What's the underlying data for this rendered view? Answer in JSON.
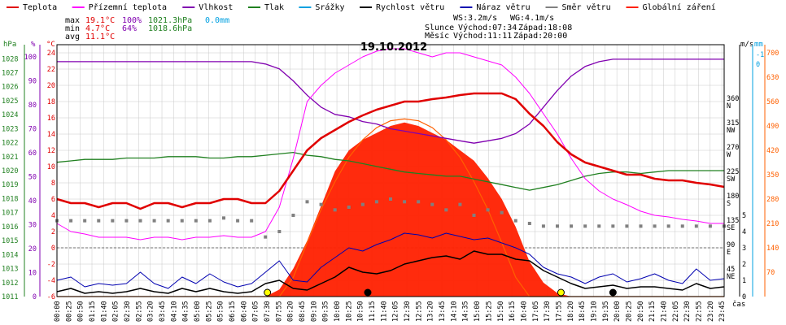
{
  "chart_data": {
    "type": "line",
    "title": "19.10.2012",
    "colors": {
      "temp": "#e00000",
      "feels": "#ff00ff",
      "humidity": "#8000b0",
      "pressure": "#208020",
      "rain": "#00a0e0",
      "wind": "#000000",
      "gust": "#0000b0",
      "dir": "#808080",
      "solar": "#ff2000",
      "solar_curve": "#ff6000",
      "grid": "#c8c8c8",
      "ref": "#707070"
    },
    "legend": [
      {
        "key": "temp",
        "label": "Teplota"
      },
      {
        "key": "feels",
        "label": "Přízemní teplota"
      },
      {
        "key": "humidity",
        "label": "Vlhkost"
      },
      {
        "key": "pressure",
        "label": "Tlak"
      },
      {
        "key": "rain",
        "label": "Srážky"
      },
      {
        "key": "wind",
        "label": "Rychlost větru"
      },
      {
        "key": "gust",
        "label": "Náraz větru"
      },
      {
        "key": "dir",
        "label": "Směr větru"
      },
      {
        "key": "solar",
        "label": "Globální záření"
      }
    ],
    "stats": {
      "max_label": "max",
      "max_temp": "19.1°C",
      "max_hum": "100%",
      "max_press": "1021.3hPa",
      "rain": "0.0mm",
      "min_label": "min",
      "min_temp": "4.7°C",
      "min_hum": "64%",
      "min_press": "1018.6hPa",
      "avg_label": "avg",
      "avg_temp": "11.1°C"
    },
    "info": {
      "ws": "WS:3.2m/s",
      "wg": "WG:4.1m/s",
      "sun_label": "Slunce",
      "sun_rise": "Východ:07:34",
      "sun_set": "Západ:18:08",
      "moon_label": "Měsíc",
      "moon_rise": "Východ:11:11",
      "moon_set": "Západ:20:00"
    },
    "axes": {
      "hpa_unit": "hPa",
      "pct_unit": "%",
      "c_unit": "°C",
      "ms_unit": "m/s",
      "mm_unit": "mm",
      "hpa_ticks": [
        "1011",
        "1012",
        "1013",
        "1014",
        "1015",
        "1016",
        "1017",
        "1018",
        "1019",
        "1020",
        "1021",
        "1022",
        "1023",
        "1024",
        "1025",
        "1026",
        "1027",
        "1028"
      ],
      "pct_ticks": [
        "0",
        "10",
        "20",
        "30",
        "40",
        "50",
        "60",
        "70",
        "80",
        "90",
        "100"
      ],
      "c_ticks": [
        "-6",
        "-4",
        "-2",
        "0",
        "2",
        "4",
        "6",
        "8",
        "10",
        "12",
        "14",
        "16",
        "18",
        "20",
        "22",
        "24"
      ],
      "dir_ticks": [
        {
          "deg": "360",
          "dir": "N"
        },
        {
          "deg": "315",
          "dir": "NW"
        },
        {
          "deg": "270",
          "dir": "W"
        },
        {
          "deg": "225",
          "dir": "SW"
        },
        {
          "deg": "180",
          "dir": "S"
        },
        {
          "deg": "135",
          "dir": "SE"
        },
        {
          "deg": "90",
          "dir": "E"
        },
        {
          "deg": "45",
          "dir": "NE"
        }
      ],
      "ms_ticks": [
        "0",
        "1",
        "2",
        "3",
        "4",
        "5"
      ],
      "mm_ticks": [
        "-1",
        "0"
      ],
      "solar_ticks": [
        "70",
        "140",
        "210",
        "280",
        "350",
        "420",
        "490",
        "560",
        "630",
        "700"
      ],
      "x_unit": "čas",
      "x_ticks": [
        "00:00",
        "00:25",
        "00:50",
        "01:15",
        "01:40",
        "02:05",
        "02:30",
        "02:55",
        "03:20",
        "03:45",
        "04:10",
        "04:35",
        "05:00",
        "05:25",
        "05:50",
        "06:15",
        "06:40",
        "07:05",
        "07:30",
        "07:55",
        "08:20",
        "08:45",
        "09:10",
        "09:35",
        "10:00",
        "10:25",
        "10:50",
        "11:15",
        "11:40",
        "12:05",
        "12:30",
        "12:55",
        "13:20",
        "13:45",
        "14:10",
        "14:35",
        "15:00",
        "15:25",
        "15:50",
        "16:15",
        "16:40",
        "17:05",
        "17:30",
        "17:55",
        "18:20",
        "18:45",
        "19:10",
        "19:35",
        "20:00",
        "20:25",
        "20:50",
        "21:15",
        "21:40",
        "22:05",
        "22:30",
        "22:55",
        "23:20",
        "23:45"
      ]
    },
    "x_hours": [
      0,
      0.5,
      1,
      1.5,
      2,
      2.5,
      3,
      3.5,
      4,
      4.5,
      5,
      5.5,
      6,
      6.5,
      7,
      7.5,
      8,
      8.5,
      9,
      9.5,
      10,
      10.5,
      11,
      11.5,
      12,
      12.5,
      13,
      13.5,
      14,
      14.5,
      15,
      15.5,
      16,
      16.5,
      17,
      17.5,
      18,
      18.5,
      19,
      19.5,
      20,
      20.5,
      21,
      21.5,
      22,
      22.5,
      23,
      23.5,
      24
    ],
    "series": [
      {
        "key": "temp",
        "unit": "°C",
        "values": [
          6.0,
          5.5,
          5.5,
          5.0,
          5.5,
          5.5,
          4.8,
          5.5,
          5.5,
          5.0,
          5.5,
          5.5,
          6.0,
          6.0,
          5.5,
          5.5,
          7.0,
          9.5,
          12.0,
          13.5,
          14.5,
          15.5,
          16.3,
          17.0,
          17.5,
          18.0,
          18.0,
          18.3,
          18.5,
          18.8,
          19.0,
          19.0,
          19.0,
          18.3,
          16.5,
          15.0,
          13.0,
          11.5,
          10.5,
          10.0,
          9.5,
          9.0,
          9.0,
          8.5,
          8.3,
          8.3,
          8.0,
          7.8,
          7.5
        ]
      },
      {
        "key": "feels",
        "unit": "°C",
        "values": [
          3.0,
          2.0,
          1.7,
          1.3,
          1.3,
          1.3,
          1.0,
          1.3,
          1.3,
          1.0,
          1.3,
          1.3,
          1.5,
          1.3,
          1.3,
          2.0,
          5.0,
          11.0,
          18.0,
          20.0,
          21.5,
          22.5,
          23.5,
          24.2,
          24.5,
          24.5,
          24.0,
          23.5,
          24.0,
          24.0,
          23.5,
          23.0,
          22.5,
          21.0,
          19.0,
          16.5,
          14.0,
          11.0,
          8.5,
          7.0,
          6.0,
          5.3,
          4.5,
          4.0,
          3.8,
          3.5,
          3.3,
          3.0,
          3.0
        ]
      },
      {
        "key": "humidity",
        "unit": "%",
        "values": [
          98,
          98,
          98,
          98,
          98,
          98,
          98,
          98,
          98,
          98,
          98,
          98,
          98,
          98,
          98,
          97,
          95,
          90,
          84,
          79,
          76,
          75,
          73,
          72,
          70,
          69,
          68,
          67,
          66,
          65,
          64,
          65,
          66,
          68,
          72,
          79,
          86,
          92,
          96,
          98,
          99,
          99,
          99,
          99,
          99,
          99,
          99,
          99,
          99
        ]
      },
      {
        "key": "pressure",
        "unit": "hPa",
        "values": [
          1020.6,
          1020.7,
          1020.8,
          1020.8,
          1020.8,
          1020.9,
          1020.9,
          1020.9,
          1021.0,
          1021.0,
          1021.0,
          1020.9,
          1020.9,
          1021.0,
          1021.0,
          1021.1,
          1021.2,
          1021.3,
          1021.1,
          1021.0,
          1020.8,
          1020.7,
          1020.5,
          1020.3,
          1020.1,
          1019.9,
          1019.8,
          1019.7,
          1019.6,
          1019.6,
          1019.4,
          1019.2,
          1019.0,
          1018.8,
          1018.6,
          1018.8,
          1019.0,
          1019.3,
          1019.6,
          1019.8,
          1019.9,
          1019.9,
          1019.8,
          1019.9,
          1020.0,
          1020.0,
          1020.0,
          1020.0,
          1020.0
        ]
      },
      {
        "key": "wind",
        "unit": "m/s",
        "values": [
          0.3,
          0.5,
          0.2,
          0.3,
          0.2,
          0.3,
          0.5,
          0.3,
          0.2,
          0.5,
          0.3,
          0.5,
          0.3,
          0.2,
          0.3,
          0.8,
          1.0,
          0.5,
          0.4,
          0.8,
          1.2,
          1.8,
          1.5,
          1.4,
          1.6,
          2.0,
          2.2,
          2.4,
          2.5,
          2.3,
          2.8,
          2.6,
          2.6,
          2.3,
          2.2,
          1.6,
          1.2,
          0.8,
          0.5,
          0.6,
          0.7,
          0.5,
          0.6,
          0.6,
          0.5,
          0.4,
          0.8,
          0.5,
          0.6
        ]
      },
      {
        "key": "gust",
        "unit": "m/s",
        "values": [
          1.0,
          1.2,
          0.6,
          0.8,
          0.7,
          0.8,
          1.5,
          0.8,
          0.5,
          1.2,
          0.8,
          1.4,
          0.9,
          0.6,
          0.8,
          1.5,
          2.2,
          1.0,
          0.9,
          1.8,
          2.4,
          3.0,
          2.8,
          3.2,
          3.5,
          3.9,
          3.8,
          3.6,
          3.9,
          3.7,
          3.5,
          3.6,
          3.3,
          3.0,
          2.6,
          1.8,
          1.4,
          1.2,
          0.8,
          1.2,
          1.4,
          0.9,
          1.1,
          1.4,
          1.0,
          0.8,
          1.7,
          1.0,
          1.1
        ]
      },
      {
        "key": "dir",
        "unit": "°",
        "values": [
          140,
          140,
          140,
          140,
          140,
          140,
          140,
          140,
          140,
          140,
          140,
          140,
          145,
          140,
          140,
          110,
          120,
          150,
          175,
          170,
          160,
          165,
          170,
          175,
          180,
          175,
          175,
          170,
          160,
          170,
          150,
          160,
          155,
          140,
          135,
          130,
          130,
          130,
          130,
          130,
          130,
          130,
          130,
          130,
          130,
          130,
          130,
          130,
          130
        ]
      },
      {
        "key": "solar",
        "unit": "W/m2",
        "values": [
          0,
          0,
          0,
          0,
          0,
          0,
          0,
          0,
          0,
          0,
          0,
          0,
          0,
          0,
          0,
          0,
          20,
          80,
          160,
          260,
          360,
          420,
          450,
          470,
          490,
          500,
          490,
          470,
          450,
          420,
          390,
          340,
          280,
          200,
          100,
          40,
          10,
          0,
          0,
          0,
          0,
          0,
          0,
          0,
          0,
          0,
          0,
          0,
          0
        ]
      },
      {
        "key": "solar_max",
        "unit": "W/m2",
        "values": [
          0,
          0,
          0,
          0,
          0,
          0,
          0,
          0,
          0,
          0,
          0,
          0,
          0,
          0,
          0,
          0,
          0,
          55,
          155,
          250,
          330,
          400,
          450,
          485,
          505,
          510,
          505,
          485,
          450,
          400,
          330,
          250,
          155,
          55,
          0,
          0,
          0,
          0,
          0,
          0,
          0,
          0,
          0,
          0,
          0,
          0,
          0,
          0,
          0
        ]
      }
    ],
    "events": [
      {
        "time": 7.57,
        "symbol": "sunrise"
      },
      {
        "time": 18.13,
        "symbol": "sunset"
      },
      {
        "time": 11.18,
        "symbol": "moonrise"
      },
      {
        "time": 20.0,
        "symbol": "moonset"
      }
    ]
  }
}
